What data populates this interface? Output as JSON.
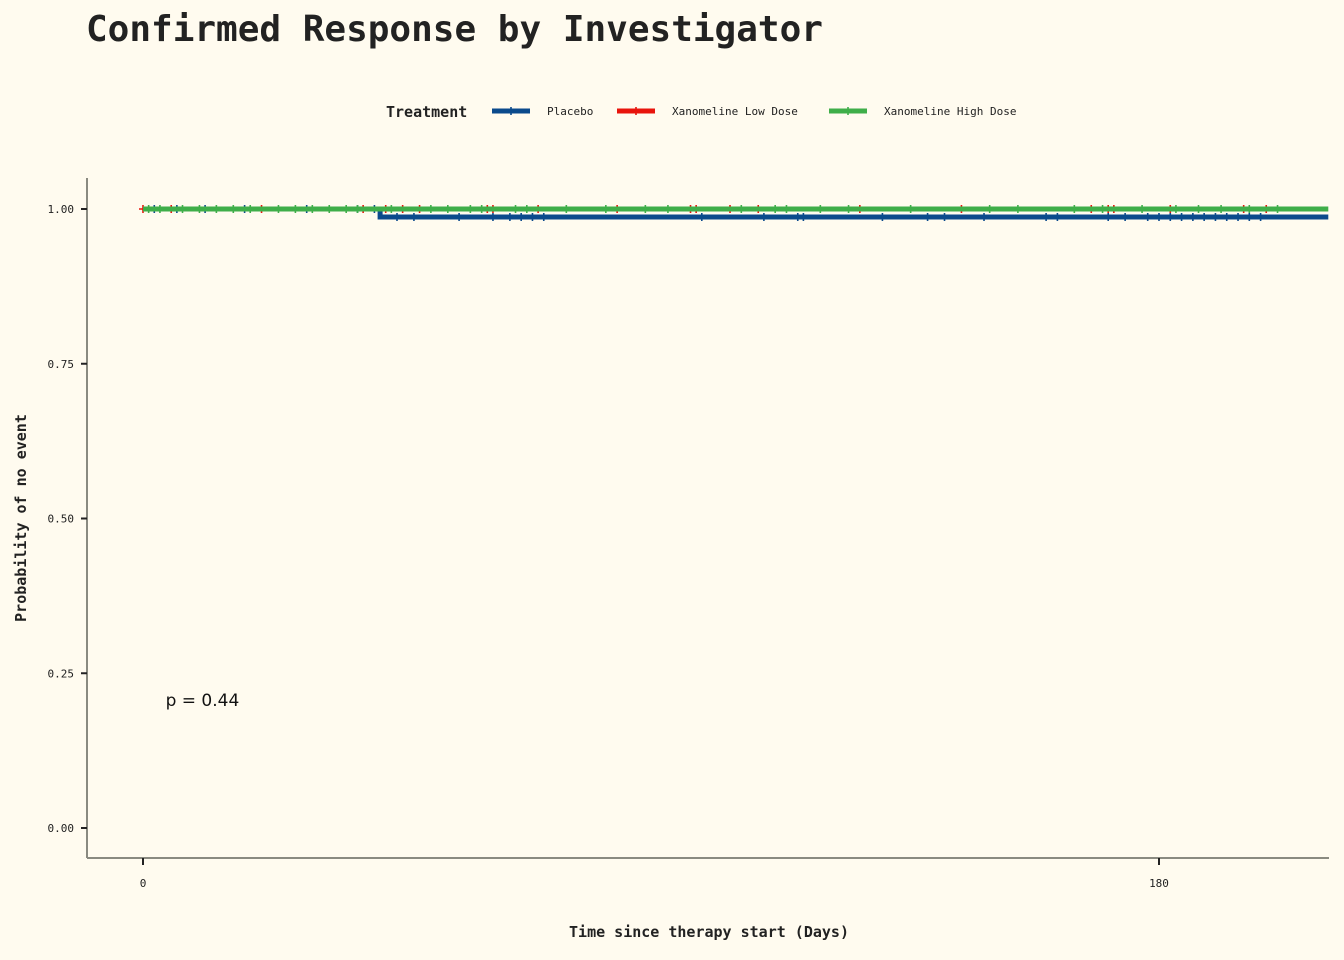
{
  "chart_data": {
    "type": "line",
    "title": "Confirmed Response by Investigator",
    "xlabel": "Time since therapy start (Days)",
    "ylabel": "Probability of no event",
    "xlim": [
      -10,
      210
    ],
    "ylim": [
      -0.05,
      1.05
    ],
    "x_ticks": [
      0,
      180
    ],
    "x_tick_labels": [
      "0",
      "180"
    ],
    "y_ticks": [
      0,
      0.25,
      0.5,
      0.75,
      1.0
    ],
    "y_tick_labels": [
      "0.00",
      "0.25",
      "0.50",
      "0.75",
      "1.00"
    ],
    "legend": {
      "title": "Treatment",
      "position": "top"
    },
    "annotation": "p = 0.44",
    "annotation_pos": [
      4,
      0.2
    ],
    "grid": false,
    "series": [
      {
        "name": "Placebo",
        "color": "#0b4a8c",
        "steps": [
          [
            0,
            1.0
          ],
          [
            42,
            1.0
          ],
          [
            42,
            0.987
          ],
          [
            210,
            0.987
          ]
        ],
        "censor_x": [
          2,
          6,
          11,
          18,
          29,
          38,
          41,
          45,
          48,
          56,
          62,
          65,
          67,
          69,
          71,
          99,
          110,
          116,
          117,
          131,
          139,
          142,
          149,
          160,
          162,
          171,
          174,
          178,
          180,
          182,
          184,
          186,
          188,
          190,
          192,
          194,
          196,
          198
        ]
      },
      {
        "name": "Xanomeline Low Dose",
        "color": "#e8140c",
        "steps": [
          [
            0,
            1.0
          ],
          [
            200,
            1.0
          ]
        ],
        "censor_x": [
          0,
          5,
          21,
          39,
          43,
          46,
          49,
          61,
          62,
          70,
          84,
          97,
          98,
          104,
          109,
          127,
          145,
          168,
          171,
          172,
          182,
          195,
          199
        ]
      },
      {
        "name": "Xanomeline High Dose",
        "color": "#3fae49",
        "steps": [
          [
            0,
            1.0
          ],
          [
            210,
            1.0
          ]
        ],
        "censor_x": [
          1,
          3,
          7,
          10,
          13,
          16,
          19,
          24,
          27,
          30,
          33,
          36,
          38,
          44,
          51,
          54,
          58,
          60,
          66,
          68,
          75,
          82,
          89,
          93,
          106,
          112,
          114,
          120,
          125,
          136,
          150,
          155,
          165,
          170,
          177,
          183,
          187,
          191,
          196,
          201
        ]
      }
    ]
  }
}
